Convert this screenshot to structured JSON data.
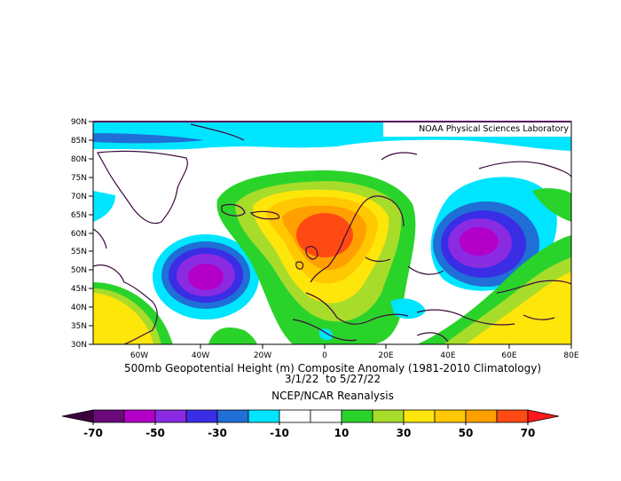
{
  "header": {
    "credit": "NOAA Physical Sciences Laboratory"
  },
  "map": {
    "lat_labels": [
      "90N",
      "85N",
      "80N",
      "75N",
      "70N",
      "65N",
      "60N",
      "55N",
      "50N",
      "45N",
      "40N",
      "35N",
      "30N"
    ],
    "lon_labels": [
      "60W",
      "40W",
      "20W",
      "0",
      "20E",
      "40E",
      "60E",
      "80E"
    ]
  },
  "caption": {
    "title": "500mb Geopotential Height (m) Composite Anomaly (1981-2010 Climatology)",
    "dates": "3/1/22  to 5/27/22",
    "source": "NCEP/NCAR Reanalysis"
  },
  "colorbar": {
    "labels": [
      "-70",
      "-50",
      "-30",
      "-10",
      "10",
      "30",
      "50",
      "70"
    ],
    "colors": [
      "#6a0a7a",
      "#b300c8",
      "#8a2be2",
      "#3a2de6",
      "#1f6fd6",
      "#00e5ff",
      "#ffffff",
      "#ffffff",
      "#2ad32a",
      "#a8dc2a",
      "#ffe60a",
      "#ffc800",
      "#ffa000",
      "#ff4a14"
    ],
    "end_left": "#3d003f",
    "end_right": "#ff1a1a"
  },
  "anomalies": [
    {
      "region": "north-atlantic-low",
      "sign": "negative",
      "peak_min": -60
    },
    {
      "region": "scandinavia-high",
      "sign": "positive",
      "peak_max": 70
    },
    {
      "region": "western-russia-low",
      "sign": "negative",
      "peak_min": -60
    },
    {
      "region": "southwest-atlantic-high",
      "sign": "positive",
      "peak_max": 30
    },
    {
      "region": "central-asia-high",
      "sign": "positive",
      "peak_max": 40
    }
  ]
}
